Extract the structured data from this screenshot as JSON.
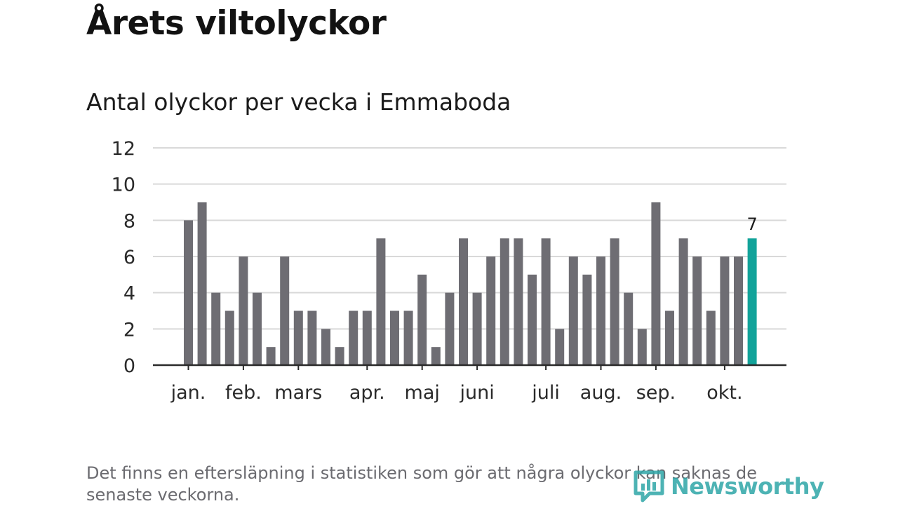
{
  "title": "Årets viltolyckor",
  "subtitle": "Antal olyckor per vecka i Emmaboda",
  "note": "Det finns en eftersläpning i statistiken som gör att några olyckor kan saknas de senaste veckorna.",
  "logo": {
    "text": "Newsworthy",
    "icon": "newsworthy-logo-icon",
    "color": "#2fa6a8"
  },
  "chart_data": {
    "type": "bar",
    "ylim": [
      0,
      12
    ],
    "yticks": [
      0,
      2,
      4,
      6,
      8,
      10,
      12
    ],
    "grid": true,
    "bar_color": "#6e6d73",
    "highlight_color": "#12a39a",
    "values": [
      8,
      9,
      4,
      3,
      6,
      4,
      1,
      6,
      3,
      3,
      2,
      1,
      3,
      3,
      7,
      3,
      3,
      5,
      1,
      4,
      7,
      4,
      6,
      7,
      7,
      5,
      7,
      2,
      6,
      5,
      6,
      7,
      4,
      2,
      9,
      3,
      7,
      6,
      3,
      6,
      6,
      7
    ],
    "highlight_index": 41,
    "highlight_label": "7",
    "month_labels": [
      {
        "label": "jan.",
        "week_index": 0
      },
      {
        "label": "feb.",
        "week_index": 4
      },
      {
        "label": "mars",
        "week_index": 8
      },
      {
        "label": "apr.",
        "week_index": 13
      },
      {
        "label": "maj",
        "week_index": 17
      },
      {
        "label": "juni",
        "week_index": 21
      },
      {
        "label": "juli",
        "week_index": 26
      },
      {
        "label": "aug.",
        "week_index": 30
      },
      {
        "label": "sep.",
        "week_index": 34
      },
      {
        "label": "okt.",
        "week_index": 39
      }
    ]
  }
}
